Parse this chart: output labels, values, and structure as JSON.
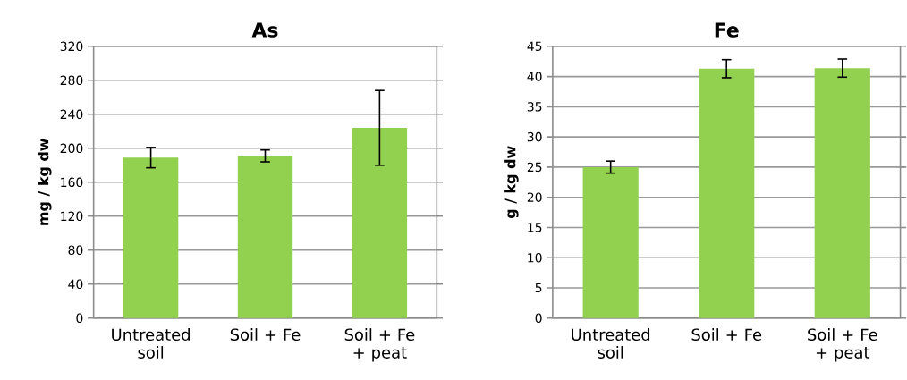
{
  "chart_data": [
    {
      "type": "bar",
      "title": "As",
      "ylabel": "mg / kg  dw",
      "categories": [
        "Untreated soil",
        "Soil + Fe",
        "Soil + Fe + peat"
      ],
      "values": [
        189,
        191,
        224
      ],
      "errors": [
        12,
        7,
        44
      ],
      "color": "#92d050",
      "ylim": [
        0,
        320
      ],
      "yticks": [
        0,
        40,
        80,
        120,
        160,
        200,
        240,
        280,
        320
      ],
      "grid": "y"
    },
    {
      "type": "bar",
      "title": "Fe",
      "ylabel": "g / kg  dw",
      "categories": [
        "Untreated soil",
        "Soil + Fe",
        "Soil + Fe + peat"
      ],
      "values": [
        25,
        41.3,
        41.4
      ],
      "errors": [
        1,
        1.5,
        1.5
      ],
      "color": "#92d050",
      "ylim": [
        0,
        45
      ],
      "yticks": [
        0,
        5,
        10,
        15,
        20,
        25,
        30,
        35,
        40,
        45
      ],
      "grid": "y"
    }
  ]
}
